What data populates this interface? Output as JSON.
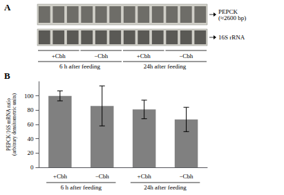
{
  "chart_data": {
    "type": "bar",
    "categories": [
      "+Cbh",
      "−Cbh",
      "+Cbh",
      "−Cbh"
    ],
    "values": [
      100,
      86,
      81,
      67
    ],
    "errors": [
      7,
      28,
      13,
      17
    ],
    "color": "#808080",
    "ylabel": "PEPCK/16S mRNA ratio\n(arbitrary densitometric units)",
    "ylim": [
      0,
      120
    ],
    "yticks": [
      0,
      20,
      40,
      60,
      80,
      100
    ],
    "grid": false,
    "annotations": [
      "A",
      "B",
      "6 h after feeding",
      "24h after feeding",
      "PEPCK\n(≈2600 bp)",
      "16S rRNA"
    ]
  }
}
